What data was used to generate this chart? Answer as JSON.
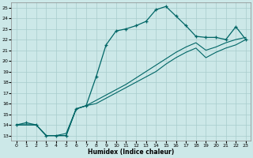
{
  "xlabel": "Humidex (Indice chaleur)",
  "bg_color": "#cce8e8",
  "grid_color": "#a8cccc",
  "line_color": "#006666",
  "xlim": [
    -0.5,
    23.5
  ],
  "ylim": [
    12.5,
    25.5
  ],
  "xticks": [
    0,
    1,
    2,
    3,
    4,
    5,
    6,
    7,
    8,
    9,
    10,
    11,
    12,
    13,
    14,
    15,
    16,
    17,
    18,
    19,
    20,
    21,
    22,
    23
  ],
  "yticks": [
    13,
    14,
    15,
    16,
    17,
    18,
    19,
    20,
    21,
    22,
    23,
    24,
    25
  ],
  "line1_x": [
    0,
    1,
    2,
    3,
    4,
    5,
    6,
    7,
    8,
    9,
    10,
    11,
    12,
    13,
    14,
    15,
    16,
    17,
    18,
    19,
    20,
    21,
    22,
    23
  ],
  "line1_y": [
    14,
    14.2,
    14,
    13,
    13,
    13,
    15.5,
    15.8,
    18.5,
    21.5,
    22.8,
    23.0,
    23.3,
    23.7,
    24.8,
    25.1,
    24.2,
    23.3,
    22.3,
    22.2,
    22.2,
    22.0,
    23.2,
    22.0
  ],
  "line2_x": [
    0,
    1,
    2,
    3,
    4,
    5,
    6,
    7,
    8,
    9,
    10,
    11,
    12,
    13,
    14,
    15,
    16,
    17,
    18,
    19,
    20,
    21,
    22,
    23
  ],
  "line2_y": [
    14,
    14,
    14,
    13,
    13,
    13,
    15.5,
    15.8,
    16.0,
    16.5,
    17.0,
    17.5,
    18.0,
    18.5,
    19.0,
    19.7,
    20.3,
    20.8,
    21.2,
    20.3,
    20.8,
    21.2,
    21.5,
    22.0
  ],
  "line3_x": [
    0,
    1,
    2,
    3,
    4,
    5,
    6,
    7,
    8,
    9,
    10,
    11,
    12,
    13,
    14,
    15,
    16,
    17,
    18,
    19,
    20,
    21,
    22,
    23
  ],
  "line3_y": [
    14,
    14,
    14,
    13,
    13,
    13.2,
    15.5,
    15.8,
    16.3,
    16.8,
    17.3,
    17.8,
    18.4,
    19.0,
    19.6,
    20.2,
    20.8,
    21.3,
    21.7,
    21.0,
    21.3,
    21.7,
    22.0,
    22.2
  ]
}
